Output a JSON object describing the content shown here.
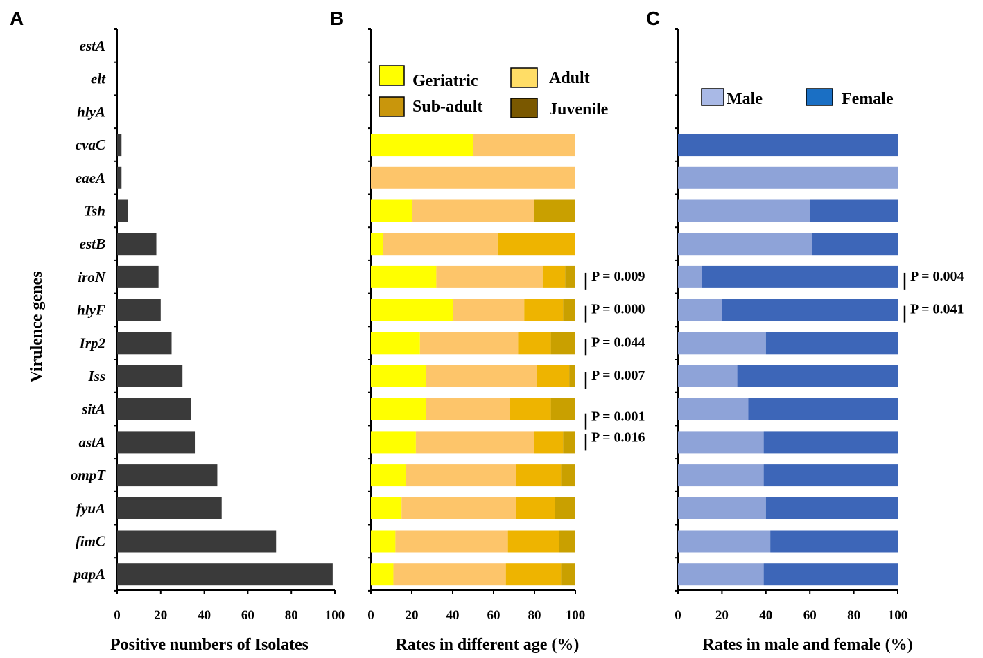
{
  "chart_data": [
    {
      "panel": "A",
      "type": "bar",
      "orientation": "horizontal",
      "categories": [
        "estA",
        "elt",
        "hlyA",
        "cvaC",
        "eaeA",
        "Tsh",
        "estB",
        "iroN",
        "hlyF",
        "Irp2",
        "Iss",
        "sitA",
        "astA",
        "ompT",
        "fyuA",
        "fimC",
        "papA"
      ],
      "values": [
        0,
        0,
        0,
        2,
        2,
        5,
        18,
        19,
        20,
        25,
        30,
        34,
        36,
        46,
        48,
        73,
        99
      ],
      "xlabel": "Positive numbers of Isolates",
      "ylabel": "Virulence genes",
      "xlim": [
        0,
        100
      ],
      "xticks": [
        0,
        20,
        40,
        60,
        80,
        100
      ],
      "color": "#3a3a3a"
    },
    {
      "panel": "B",
      "type": "bar",
      "orientation": "horizontal",
      "stacked": true,
      "categories": [
        "estA",
        "elt",
        "hlyA",
        "cvaC",
        "eaeA",
        "Tsh",
        "estB",
        "iroN",
        "hlyF",
        "Irp2",
        "Iss",
        "sitA",
        "astA",
        "ompT",
        "fyuA",
        "fimC",
        "papA"
      ],
      "series": [
        {
          "name": "Geriatric",
          "color": "#ffff00",
          "values": [
            0,
            0,
            0,
            50,
            0,
            20,
            6,
            32,
            40,
            24,
            27,
            27,
            22,
            17,
            15,
            12,
            11
          ]
        },
        {
          "name": "Adult",
          "color": "#fdc56a",
          "values": [
            0,
            0,
            0,
            50,
            100,
            60,
            56,
            52,
            35,
            48,
            54,
            41,
            58,
            54,
            56,
            55,
            55
          ]
        },
        {
          "name": "Sub-adult",
          "color": "#eeb400",
          "values": [
            0,
            0,
            0,
            0,
            0,
            0,
            38,
            11,
            19,
            16,
            16,
            20,
            14,
            22,
            19,
            25,
            27
          ]
        },
        {
          "name": "Juvenile",
          "color": "#c9a000",
          "values": [
            0,
            0,
            0,
            0,
            0,
            20,
            0,
            5,
            6,
            12,
            3,
            12,
            6,
            7,
            10,
            8,
            7
          ]
        }
      ],
      "legend_order": [
        "Geriatric",
        "Adult",
        "Sub-adult",
        "Juvenile"
      ],
      "legend_colors": [
        "#ffff00",
        "#ffdd66",
        "#c9960c",
        "#7a5800"
      ],
      "xlabel": "Rates in different age (%)",
      "xlim": [
        0,
        100
      ],
      "xticks": [
        0,
        20,
        40,
        60,
        80,
        100
      ],
      "annotations": [
        {
          "gene": "iroN",
          "text": "P = 0.009"
        },
        {
          "gene": "hlyF",
          "text": "P = 0.000"
        },
        {
          "gene": "Irp2",
          "text": "P = 0.044"
        },
        {
          "gene": "Iss",
          "text": "P = 0.007"
        },
        {
          "gene": "sitA",
          "text": "P = 0.001"
        },
        {
          "gene": "astA",
          "text": "P = 0.016"
        }
      ]
    },
    {
      "panel": "C",
      "type": "bar",
      "orientation": "horizontal",
      "stacked": true,
      "categories": [
        "estA",
        "elt",
        "hlyA",
        "cvaC",
        "eaeA",
        "Tsh",
        "estB",
        "iroN",
        "hlyF",
        "Irp2",
        "Iss",
        "sitA",
        "astA",
        "ompT",
        "fyuA",
        "fimC",
        "papA"
      ],
      "series": [
        {
          "name": "Male",
          "color": "#8ea3d8",
          "values": [
            0,
            0,
            0,
            0,
            100,
            60,
            61,
            11,
            20,
            40,
            27,
            32,
            39,
            39,
            40,
            42,
            39
          ]
        },
        {
          "name": "Female",
          "color": "#3d66b8",
          "values": [
            0,
            0,
            0,
            100,
            0,
            40,
            39,
            89,
            80,
            60,
            73,
            68,
            61,
            61,
            60,
            58,
            61
          ]
        }
      ],
      "legend_order": [
        "Male",
        "Female"
      ],
      "legend_colors": [
        "#a9b9e6",
        "#1a6fc4"
      ],
      "xlabel": "Rates in male and female (%)",
      "xlim": [
        0,
        100
      ],
      "xticks": [
        0,
        20,
        40,
        60,
        80,
        100
      ],
      "annotations": [
        {
          "gene": "iroN",
          "text": "P = 0.004"
        },
        {
          "gene": "hlyF",
          "text": "P = 0.041"
        }
      ]
    }
  ]
}
